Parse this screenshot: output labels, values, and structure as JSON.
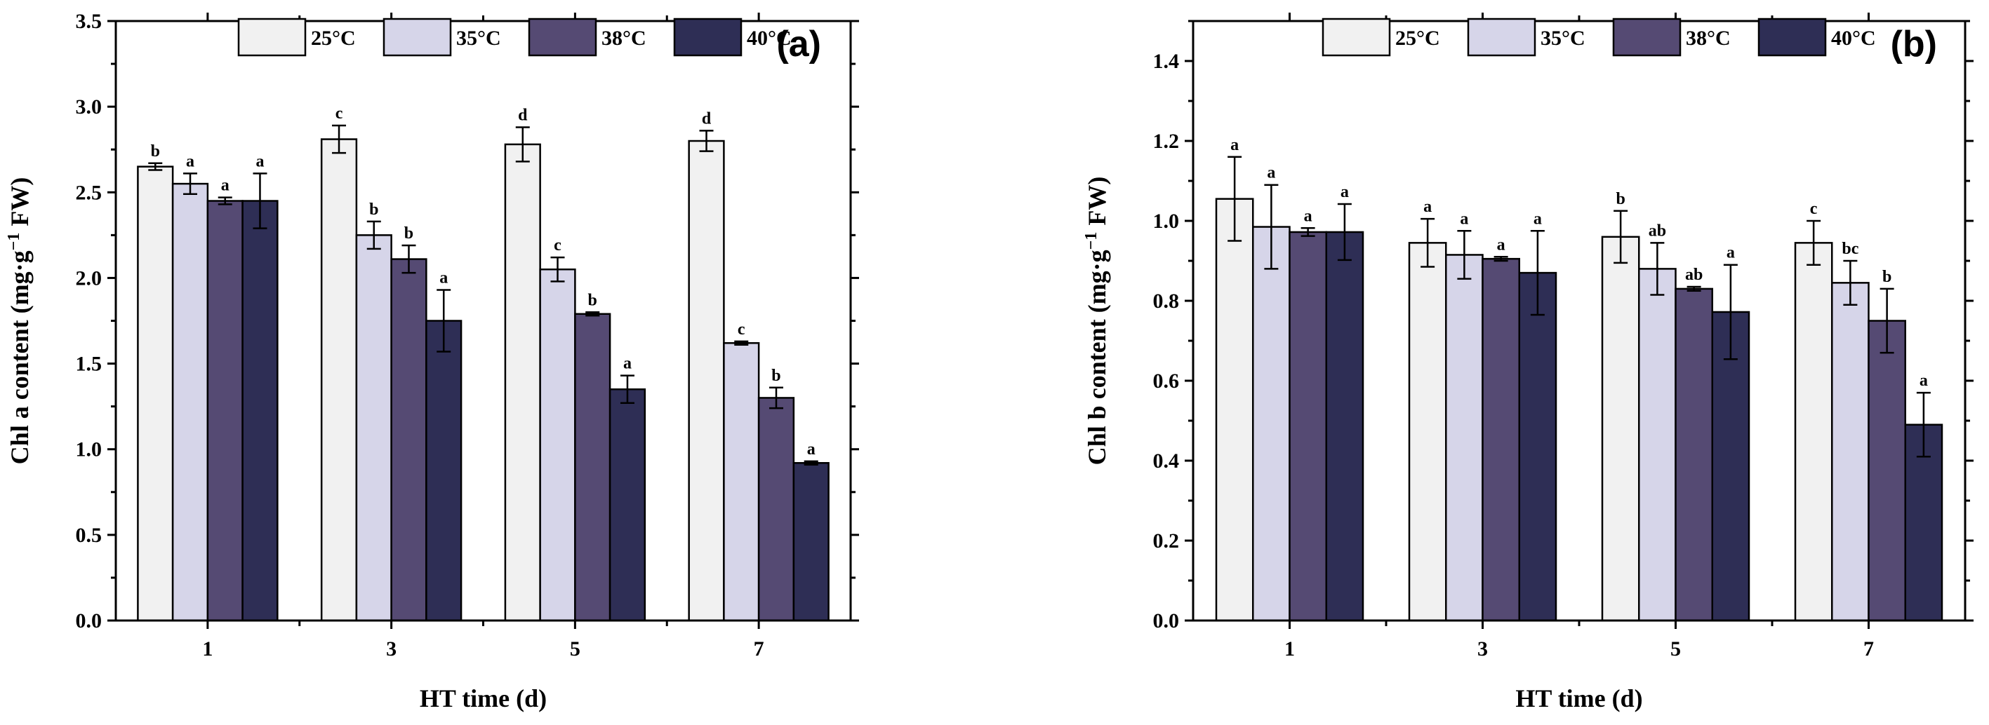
{
  "chart_data": [
    {
      "type": "bar",
      "panel_label": "(a)",
      "xlabel": "HT time (d)",
      "ylabel_main": "Chl a content (mg·g",
      "ylabel_sup": "−1",
      "ylabel_tail": " FW)",
      "categories": [
        "1",
        "3",
        "5",
        "7"
      ],
      "ylim": [
        0,
        3.5
      ],
      "yticks": [
        "0.0",
        "0.5",
        "1.0",
        "1.5",
        "2.0",
        "2.5",
        "3.0",
        "3.5"
      ],
      "legend_position": "top",
      "series": [
        {
          "name": "25°C",
          "color": "#f1f1f1",
          "values": [
            2.65,
            2.81,
            2.78,
            2.8
          ],
          "errors": [
            0.02,
            0.08,
            0.1,
            0.06
          ],
          "letters": [
            "b",
            "c",
            "d",
            "d"
          ]
        },
        {
          "name": "35°C",
          "color": "#d6d5e9",
          "values": [
            2.55,
            2.25,
            2.05,
            1.62
          ],
          "errors": [
            0.06,
            0.08,
            0.07,
            0.01
          ],
          "letters": [
            "a",
            "b",
            "c",
            "c"
          ]
        },
        {
          "name": "38°C",
          "color": "#554a73",
          "values": [
            2.45,
            2.11,
            1.79,
            1.3
          ],
          "errors": [
            0.02,
            0.08,
            0.01,
            0.06
          ],
          "letters": [
            "a",
            "b",
            "b",
            "b"
          ]
        },
        {
          "name": "40°C",
          "color": "#2e2e55",
          "values": [
            2.45,
            1.75,
            1.35,
            0.92
          ],
          "errors": [
            0.16,
            0.18,
            0.08,
            0.01
          ],
          "letters": [
            "a",
            "a",
            "a",
            "a"
          ]
        }
      ]
    },
    {
      "type": "bar",
      "panel_label": "(b)",
      "xlabel": "HT time (d)",
      "ylabel_main": "Chl b content (mg·g",
      "ylabel_sup": "−1",
      "ylabel_tail": " FW)",
      "categories": [
        "1",
        "3",
        "5",
        "7"
      ],
      "ylim": [
        0,
        1.5
      ],
      "yticks": [
        "0.0",
        "0.2",
        "0.4",
        "0.6",
        "0.8",
        "1.0",
        "1.2",
        "1.4"
      ],
      "legend_position": "top",
      "series": [
        {
          "name": "25°C",
          "color": "#f1f1f1",
          "values": [
            1.055,
            0.945,
            0.96,
            0.945
          ],
          "errors": [
            0.105,
            0.06,
            0.065,
            0.055
          ],
          "letters": [
            "a",
            "a",
            "b",
            "c"
          ]
        },
        {
          "name": "35°C",
          "color": "#d6d5e9",
          "values": [
            0.985,
            0.915,
            0.88,
            0.845
          ],
          "errors": [
            0.105,
            0.06,
            0.065,
            0.055
          ],
          "letters": [
            "a",
            "a",
            "ab",
            "bc"
          ]
        },
        {
          "name": "38°C",
          "color": "#554a73",
          "values": [
            0.972,
            0.905,
            0.83,
            0.75
          ],
          "errors": [
            0.01,
            0.005,
            0.005,
            0.08
          ],
          "letters": [
            "a",
            "a",
            "ab",
            "b"
          ]
        },
        {
          "name": "40°C",
          "color": "#2e2e55",
          "values": [
            0.972,
            0.87,
            0.772,
            0.49
          ],
          "errors": [
            0.07,
            0.105,
            0.118,
            0.08
          ],
          "letters": [
            "a",
            "a",
            "a",
            "a"
          ]
        }
      ]
    }
  ]
}
